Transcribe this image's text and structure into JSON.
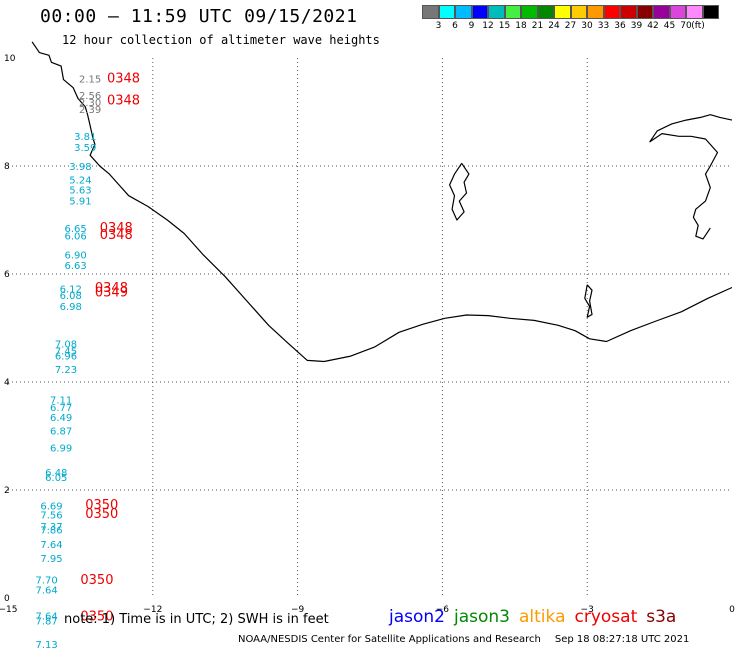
{
  "title": "00:00 – 11:59 UTC 09/15/2021",
  "subtitle": "12 hour collection of altimeter wave heights",
  "legend": {
    "colors": [
      "#777777",
      "#00ffff",
      "#00bbff",
      "#0000ff",
      "#00bbbb",
      "#44ee44",
      "#00bb00",
      "#008800",
      "#ffff00",
      "#ffcc00",
      "#ff9900",
      "#ff0000",
      "#cc0000",
      "#880000",
      "#990099",
      "#dd44dd",
      "#ff88ff",
      "#000000"
    ],
    "labels": [
      "3",
      "6",
      "9",
      "12",
      "15",
      "18",
      "21",
      "24",
      "27",
      "30",
      "33",
      "36",
      "39",
      "42",
      "45",
      "70",
      "(ft)"
    ]
  },
  "axes": {
    "x_labels": [
      "−15",
      "−12",
      "−9",
      "−6",
      "−3",
      "0"
    ],
    "y_labels": [
      "10",
      "8",
      "6",
      "4",
      "2",
      "0"
    ]
  },
  "colors": {
    "cyan": "#00aacc",
    "gray": "#777777",
    "red": "#ee0000",
    "coast": "#000000",
    "grid": "#555555"
  },
  "observations": [
    {
      "text": "2.15",
      "color": "gray",
      "lon": -13.53,
      "lat": 9.55
    },
    {
      "text": "2.56",
      "color": "gray",
      "lon": -13.53,
      "lat": 9.24
    },
    {
      "text": "2.30",
      "color": "gray",
      "lon": -13.53,
      "lat": 9.11
    },
    {
      "text": "2.39",
      "color": "gray",
      "lon": -13.53,
      "lat": 8.98
    },
    {
      "text": "3.81",
      "color": "cyan",
      "lon": -13.63,
      "lat": 8.48
    },
    {
      "text": "3.59",
      "color": "cyan",
      "lon": -13.63,
      "lat": 8.28
    },
    {
      "text": "3.98",
      "color": "cyan",
      "lon": -13.73,
      "lat": 7.93
    },
    {
      "text": "5.24",
      "color": "cyan",
      "lon": -13.73,
      "lat": 7.68
    },
    {
      "text": "5.63",
      "color": "cyan",
      "lon": -13.73,
      "lat": 7.49
    },
    {
      "text": "5.91",
      "color": "cyan",
      "lon": -13.73,
      "lat": 7.29
    },
    {
      "text": "6.65",
      "color": "cyan",
      "lon": -13.83,
      "lat": 6.78
    },
    {
      "text": "6.06",
      "color": "cyan",
      "lon": -13.83,
      "lat": 6.64
    },
    {
      "text": "6.90",
      "color": "cyan",
      "lon": -13.83,
      "lat": 6.29
    },
    {
      "text": "6.63",
      "color": "cyan",
      "lon": -13.83,
      "lat": 6.09
    },
    {
      "text": "6.12",
      "color": "cyan",
      "lon": -13.93,
      "lat": 5.66
    },
    {
      "text": "6.08",
      "color": "cyan",
      "lon": -13.93,
      "lat": 5.54
    },
    {
      "text": "6.98",
      "color": "cyan",
      "lon": -13.93,
      "lat": 5.33
    },
    {
      "text": "7.08",
      "color": "cyan",
      "lon": -14.03,
      "lat": 4.64
    },
    {
      "text": "7.45",
      "color": "cyan",
      "lon": -14.03,
      "lat": 4.51
    },
    {
      "text": "6.96",
      "color": "cyan",
      "lon": -14.03,
      "lat": 4.42
    },
    {
      "text": "7.23",
      "color": "cyan",
      "lon": -14.03,
      "lat": 4.17
    },
    {
      "text": "7.11",
      "color": "cyan",
      "lon": -14.13,
      "lat": 3.6
    },
    {
      "text": "6.77",
      "color": "cyan",
      "lon": -14.13,
      "lat": 3.46
    },
    {
      "text": "6.49",
      "color": "cyan",
      "lon": -14.13,
      "lat": 3.28
    },
    {
      "text": "6.87",
      "color": "cyan",
      "lon": -14.13,
      "lat": 3.03
    },
    {
      "text": "6.99",
      "color": "cyan",
      "lon": -14.13,
      "lat": 2.71
    },
    {
      "text": "6.48",
      "color": "cyan",
      "lon": -14.23,
      "lat": 2.26
    },
    {
      "text": "6.05",
      "color": "cyan",
      "lon": -14.23,
      "lat": 2.17
    },
    {
      "text": "6.69",
      "color": "cyan",
      "lon": -14.33,
      "lat": 1.64
    },
    {
      "text": "7.56",
      "color": "cyan",
      "lon": -14.33,
      "lat": 1.47
    },
    {
      "text": "7.37",
      "color": "cyan",
      "lon": -14.33,
      "lat": 1.26
    },
    {
      "text": "7.86",
      "color": "cyan",
      "lon": -14.33,
      "lat": 1.19
    },
    {
      "text": "7.64",
      "color": "cyan",
      "lon": -14.33,
      "lat": 0.93
    },
    {
      "text": "7.95",
      "color": "cyan",
      "lon": -14.33,
      "lat": 0.67
    },
    {
      "text": "7.70",
      "color": "cyan",
      "lon": -14.43,
      "lat": 0.27
    },
    {
      "text": "7.64",
      "color": "cyan",
      "lon": -14.43,
      "lat": 0.08
    },
    {
      "text": "7.64",
      "color": "cyan",
      "lon": -14.43,
      "lat": -0.4
    },
    {
      "text": "7.87",
      "color": "cyan",
      "lon": -14.43,
      "lat": -0.49
    },
    {
      "text": "7.13",
      "color": "cyan",
      "lon": -14.43,
      "lat": -0.93
    },
    {
      "text": "0348",
      "color": "red",
      "lon": -12.95,
      "lat": 9.55
    },
    {
      "text": "0348",
      "color": "red",
      "lon": -12.95,
      "lat": 9.14
    },
    {
      "text": "0348",
      "color": "red",
      "lon": -13.1,
      "lat": 6.78
    },
    {
      "text": "0348",
      "color": "red",
      "lon": -13.1,
      "lat": 6.65
    },
    {
      "text": "0348",
      "color": "red",
      "lon": -13.2,
      "lat": 5.67
    },
    {
      "text": "0349",
      "color": "red",
      "lon": -13.2,
      "lat": 5.58
    },
    {
      "text": "0350",
      "color": "red",
      "lon": -13.4,
      "lat": 1.65
    },
    {
      "text": "0350",
      "color": "red",
      "lon": -13.4,
      "lat": 1.48
    },
    {
      "text": "0350",
      "color": "red",
      "lon": -13.5,
      "lat": 0.26
    },
    {
      "text": "0350",
      "color": "red",
      "lon": -13.5,
      "lat": -0.42
    }
  ],
  "coastline": [
    [
      -14.5,
      10.3
    ],
    [
      -14.35,
      10.1
    ],
    [
      -14.15,
      10.05
    ],
    [
      -14.1,
      9.92
    ],
    [
      -13.9,
      9.85
    ],
    [
      -13.85,
      9.6
    ],
    [
      -13.65,
      9.45
    ],
    [
      -13.55,
      9.25
    ],
    [
      -13.4,
      9.1
    ],
    [
      -13.35,
      8.95
    ],
    [
      -13.3,
      8.75
    ],
    [
      -13.25,
      8.55
    ],
    [
      -13.2,
      8.4
    ],
    [
      -13.3,
      8.2
    ],
    [
      -13.1,
      8.0
    ],
    [
      -12.9,
      7.85
    ],
    [
      -12.7,
      7.65
    ],
    [
      -12.5,
      7.45
    ],
    [
      -12.1,
      7.25
    ],
    [
      -11.7,
      7.0
    ],
    [
      -11.35,
      6.75
    ],
    [
      -10.95,
      6.35
    ],
    [
      -10.5,
      5.95
    ],
    [
      -10.05,
      5.5
    ],
    [
      -9.6,
      5.05
    ],
    [
      -9.2,
      4.72
    ],
    [
      -8.8,
      4.4
    ],
    [
      -8.45,
      4.38
    ],
    [
      -7.9,
      4.48
    ],
    [
      -7.4,
      4.65
    ],
    [
      -6.9,
      4.92
    ],
    [
      -6.4,
      5.07
    ],
    [
      -5.95,
      5.18
    ],
    [
      -5.5,
      5.24
    ],
    [
      -5.05,
      5.23
    ],
    [
      -4.6,
      5.18
    ],
    [
      -4.1,
      5.14
    ],
    [
      -3.6,
      5.05
    ],
    [
      -3.25,
      4.95
    ],
    [
      -2.95,
      4.8
    ],
    [
      -2.6,
      4.75
    ],
    [
      -2.1,
      4.95
    ],
    [
      -1.6,
      5.12
    ],
    [
      -1.05,
      5.3
    ],
    [
      -0.5,
      5.55
    ],
    [
      0,
      5.75
    ]
  ],
  "land_east": [
    [
      -0.45,
      6.85
    ],
    [
      -0.6,
      6.65
    ],
    [
      -0.75,
      6.7
    ],
    [
      -0.7,
      6.9
    ],
    [
      -0.8,
      7.05
    ],
    [
      -0.75,
      7.2
    ],
    [
      -0.55,
      7.35
    ],
    [
      -0.45,
      7.6
    ],
    [
      -0.55,
      7.85
    ],
    [
      -0.45,
      8.0
    ],
    [
      -0.3,
      8.25
    ],
    [
      -0.55,
      8.5
    ],
    [
      -0.85,
      8.55
    ],
    [
      -1.1,
      8.55
    ],
    [
      -1.45,
      8.6
    ],
    [
      -1.7,
      8.45
    ],
    [
      -1.55,
      8.65
    ],
    [
      -1.25,
      8.78
    ],
    [
      -0.95,
      8.85
    ],
    [
      -0.65,
      8.9
    ],
    [
      -0.45,
      8.95
    ],
    [
      -0.25,
      8.9
    ],
    [
      0,
      8.85
    ]
  ],
  "island_a": [
    [
      -5.6,
      8.05
    ],
    [
      -5.45,
      7.85
    ],
    [
      -5.55,
      7.7
    ],
    [
      -5.5,
      7.5
    ],
    [
      -5.65,
      7.35
    ],
    [
      -5.55,
      7.15
    ],
    [
      -5.7,
      7.0
    ],
    [
      -5.8,
      7.2
    ],
    [
      -5.75,
      7.45
    ],
    [
      -5.85,
      7.65
    ],
    [
      -5.75,
      7.85
    ],
    [
      -5.6,
      8.05
    ]
  ],
  "island_b": [
    [
      -3.0,
      5.8
    ],
    [
      -3.05,
      5.55
    ],
    [
      -2.95,
      5.4
    ],
    [
      -3.0,
      5.2
    ],
    [
      -2.9,
      5.25
    ],
    [
      -2.95,
      5.5
    ],
    [
      -2.9,
      5.7
    ],
    [
      -3.0,
      5.8
    ]
  ],
  "note_text": "note: 1) Time is in UTC; 2) SWH is in feet",
  "satellites": [
    {
      "name": "jason2",
      "color": "#0000ff"
    },
    {
      "name": "jason3",
      "color": "#008800"
    },
    {
      "name": "altika",
      "color": "#ff9900"
    },
    {
      "name": "cryosat",
      "color": "#ee0000"
    },
    {
      "name": "s3a",
      "color": "#880000"
    }
  ],
  "footer": {
    "org": "NOAA/NESDIS Center for Satellite Applications and Research",
    "timestamp": "Sep 18 08:27:18 UTC 2021"
  }
}
